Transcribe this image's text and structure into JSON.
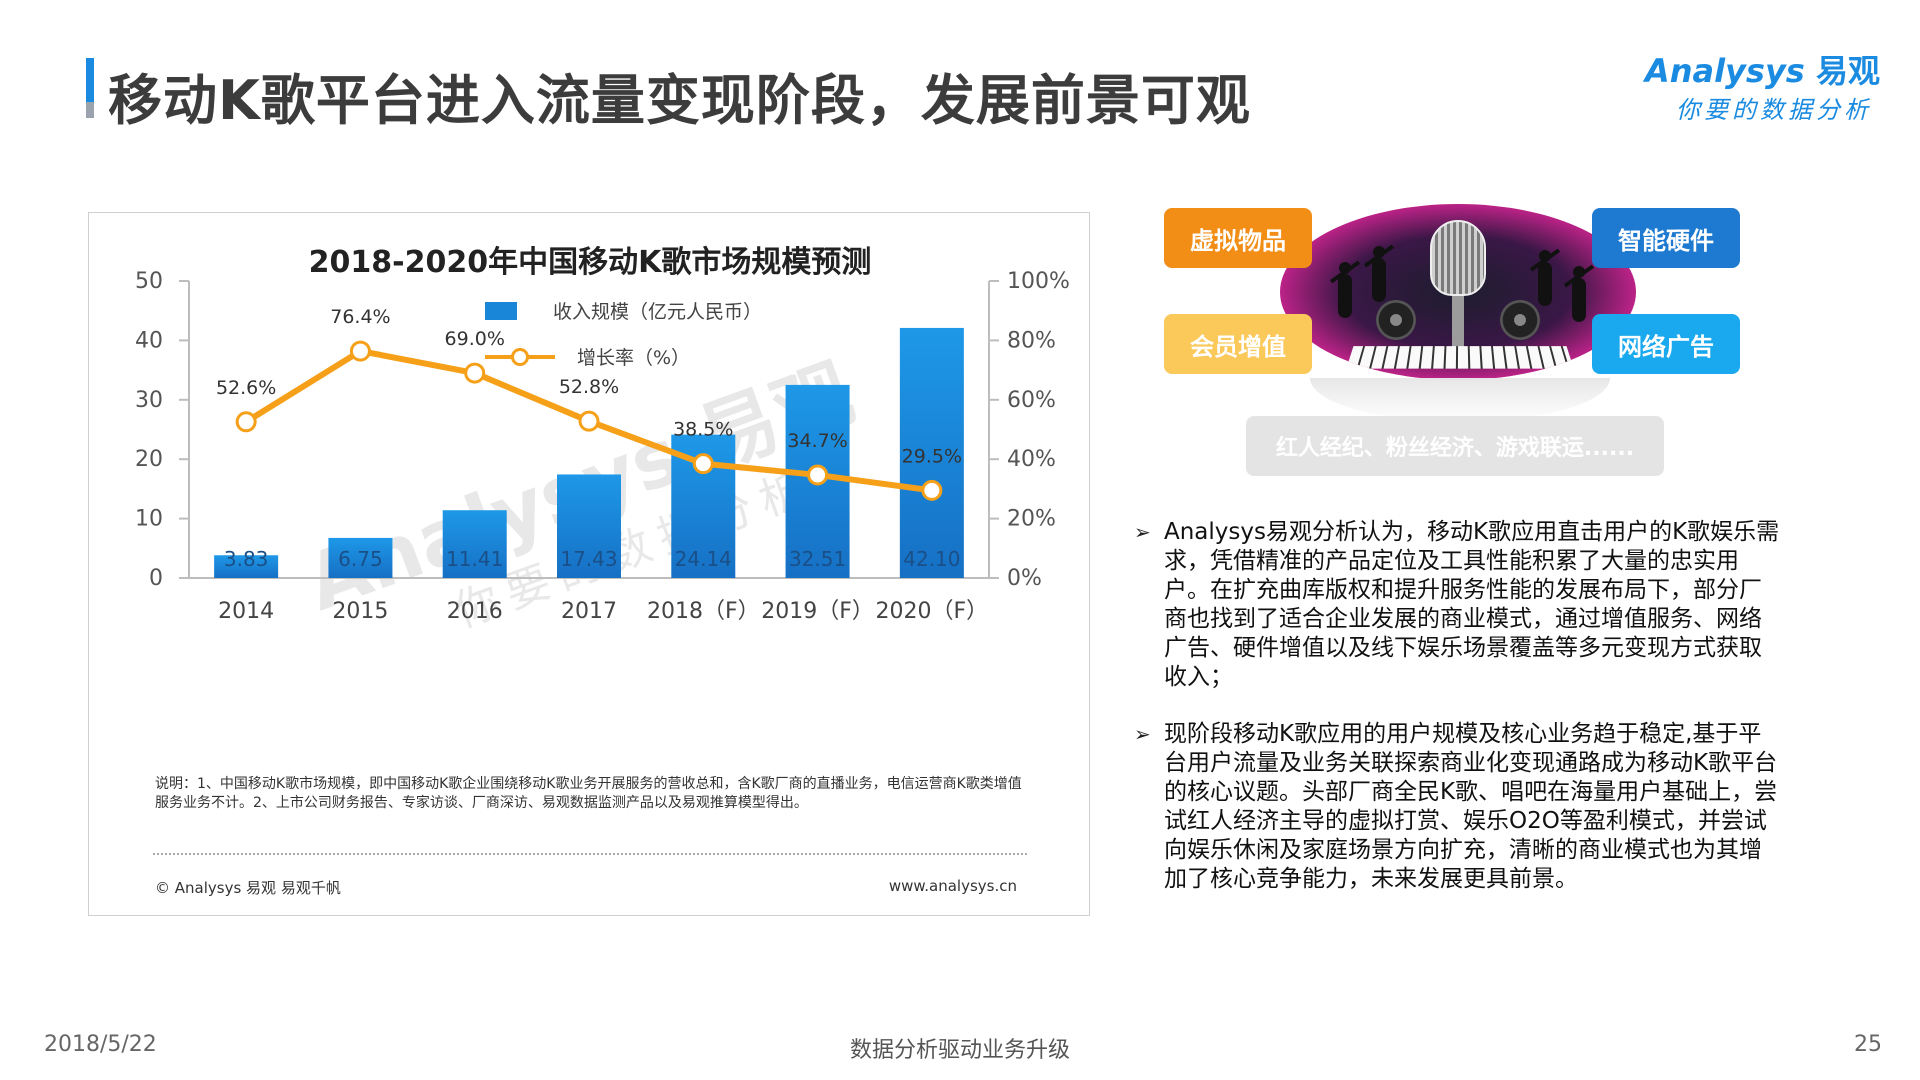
{
  "header": {
    "title": "移动K歌平台进入流量变现阶段，发展前景可观",
    "brand_logo": "Analysys",
    "brand_logo_cn": "易观",
    "brand_tagline": "你要的数据分析"
  },
  "chart": {
    "note": "说明：1、中国移动K歌市场规模，即中国移动K歌企业围绕移动K歌业务开展服务的营收总和，含K歌厂商的直播业务，电信运营商K歌类增值服务业务不计。2、上市公司财务报告、专家访谈、厂商深访、易观数据监测产品以及易观推算模型得出。",
    "copyright": "© Analysys 易观 易观千帆",
    "url": "www.analysys.cn",
    "watermark_logo": "Analysys 易观",
    "watermark_tag": "你要的数据分析"
  },
  "chart_data": {
    "type": "bar",
    "title": "2018-2020年中国移动K歌市场规模预测",
    "categories": [
      "2014",
      "2015",
      "2016",
      "2017",
      "2018（F）",
      "2019（F）",
      "2020（F）"
    ],
    "series": [
      {
        "name": "收入规模（亿元人民币）",
        "type": "bar",
        "axis": "left",
        "values": [
          3.83,
          6.75,
          11.41,
          17.43,
          24.14,
          32.51,
          42.1
        ],
        "labels": [
          "3.83",
          "6.75",
          "11.41",
          "17.43",
          "24.14",
          "32.51",
          "42.10"
        ],
        "color": "#1a86d8"
      },
      {
        "name": "增长率（%）",
        "type": "line",
        "axis": "right",
        "values": [
          52.6,
          76.4,
          69.0,
          52.8,
          38.5,
          34.7,
          29.5
        ],
        "labels": [
          "52.6%",
          "76.4%",
          "69.0%",
          "52.8%",
          "38.5%",
          "34.7%",
          "29.5%"
        ],
        "color": "#f5a018"
      }
    ],
    "ylim_left": [
      0,
      50
    ],
    "yticks_left": [
      "0",
      "10",
      "20",
      "30",
      "40",
      "50"
    ],
    "ylim_right": [
      0,
      100
    ],
    "yticks_right": [
      "0%",
      "20%",
      "40%",
      "60%",
      "80%",
      "100%"
    ],
    "grid": false,
    "legend_position": "top-center"
  },
  "illustration": {
    "tags": [
      "虚拟物品",
      "智能硬件",
      "会员增值",
      "网络广告"
    ],
    "bottom_tag": "红人经纪、粉丝经济、游戏联运......"
  },
  "analysis": [
    "Analysys易观分析认为，移动K歌应用直击用户的K歌娱乐需求，凭借精准的产品定位及工具性能积累了大量的忠实用户。在扩充曲库版权和提升服务性能的发展布局下，部分厂商也找到了适合企业发展的商业模式，通过增值服务、网络广告、硬件增值以及线下娱乐场景覆盖等多元变现方式获取收入；",
    "现阶段移动K歌应用的用户规模及核心业务趋于稳定,基于平台用户流量及业务关联探索商业化变现通路成为移动K歌平台的核心议题。头部厂商全民K歌、唱吧在海量用户基础上，尝试红人经济主导的虚拟打赏、娱乐O2O等盈利模式，并尝试向娱乐休闲及家庭场景方向扩充，清晰的商业模式也为其增加了核心竞争能力，未来发展更具前景。"
  ],
  "footer": {
    "date": "2018/5/22",
    "center": "数据分析驱动业务升级",
    "page": "25"
  }
}
